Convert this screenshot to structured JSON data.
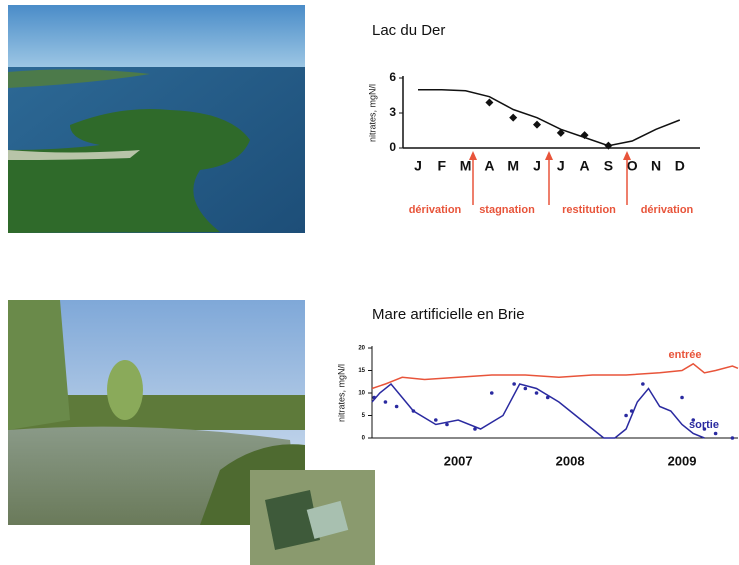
{
  "chart_data": [
    {
      "type": "line",
      "title": "Lac du Der",
      "y_label": "nitrates, mgN/l",
      "categories": [
        "J",
        "F",
        "M",
        "A",
        "M",
        "J",
        "J",
        "A",
        "S",
        "O",
        "N",
        "D"
      ],
      "series": [
        {
          "color": "#111111",
          "style": "line",
          "values": [
            5,
            5,
            4.9,
            4.4,
            3.3,
            2.6,
            1.6,
            0.9,
            0.2,
            0.6,
            1.6,
            2.4
          ]
        },
        {
          "color": "#111111",
          "style": "markers",
          "values": [
            null,
            null,
            null,
            3.9,
            2.6,
            2.0,
            1.3,
            1.1,
            0.2,
            null,
            null,
            null
          ]
        }
      ],
      "ylim": [
        0,
        6
      ],
      "yticks": [
        0,
        3,
        6
      ],
      "annotations": [
        "dérivation",
        "stagnation",
        "restitution",
        "dérivation"
      ],
      "annotation_color": "#e8543a"
    },
    {
      "type": "line",
      "title": "Mare artificielle en Brie",
      "y_label": "nitrates, mgN/l",
      "series": [
        {
          "name": "entrée",
          "color": "#e8543a",
          "style": "line",
          "x": [
            2006.23,
            2006.35,
            2006.5,
            2006.7,
            2007.0,
            2007.3,
            2007.6,
            2007.9,
            2008.2,
            2008.5,
            2008.8,
            2009.0,
            2009.1,
            2009.2,
            2009.3,
            2009.45,
            2009.5
          ],
          "values": [
            11,
            12,
            13.5,
            13,
            13.5,
            14,
            14,
            13.5,
            14,
            14,
            14.5,
            15,
            16.5,
            14.5,
            15,
            16,
            15.5
          ]
        },
        {
          "name": "sortie",
          "color": "#2a2aa0",
          "style": "line",
          "x": [
            2006.23,
            2006.3,
            2006.4,
            2006.5,
            2006.6,
            2006.8,
            2007.0,
            2007.2,
            2007.4,
            2007.55,
            2007.7,
            2007.9,
            2008.1,
            2008.3,
            2008.4,
            2008.5,
            2008.6,
            2008.7,
            2008.8,
            2008.9,
            2009.0,
            2009.1,
            2009.2
          ],
          "values": [
            8,
            10,
            12,
            9,
            6,
            3,
            4,
            2,
            5,
            12,
            11,
            8,
            4,
            0,
            0,
            2,
            8,
            11,
            7,
            6,
            3,
            1,
            0
          ]
        },
        {
          "color": "#2a2aa0",
          "style": "markers",
          "x": [
            2006.25,
            2006.35,
            2006.45,
            2006.6,
            2006.8,
            2006.9,
            2007.15,
            2007.3,
            2007.5,
            2007.6,
            2007.7,
            2007.8,
            2008.5,
            2008.55,
            2008.65,
            2009.0,
            2009.1,
            2009.2,
            2009.3,
            2009.45
          ],
          "values": [
            9,
            8,
            7,
            6,
            4,
            3,
            2,
            10,
            12,
            11,
            10,
            9,
            5,
            6,
            12,
            9,
            4,
            2,
            1,
            0
          ]
        }
      ],
      "xlim": [
        2006.23,
        2009.5
      ],
      "xticks": [
        2007,
        2008,
        2009
      ],
      "ylim": [
        0,
        20
      ],
      "yticks": [
        0,
        5,
        10,
        15,
        20
      ]
    }
  ]
}
